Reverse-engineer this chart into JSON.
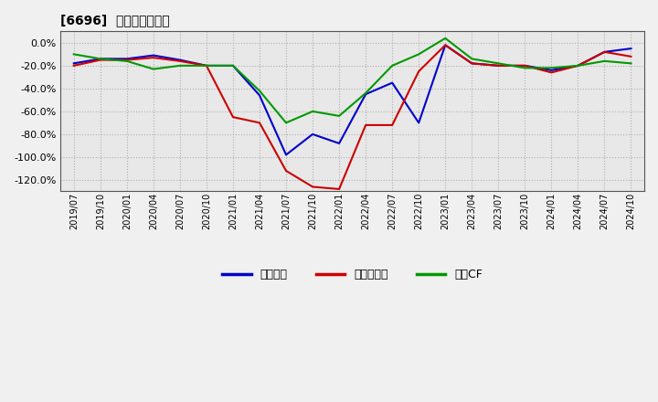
{
  "title": "[6696]  マージンの推移",
  "background_color": "#f0f0f0",
  "plot_bg_color": "#e8e8e8",
  "grid_color": "#aaaaaa",
  "x_labels": [
    "2019/07",
    "2019/10",
    "2020/01",
    "2020/04",
    "2020/07",
    "2020/10",
    "2021/01",
    "2021/04",
    "2021/07",
    "2021/10",
    "2022/01",
    "2022/04",
    "2022/07",
    "2022/10",
    "2023/01",
    "2023/04",
    "2023/07",
    "2023/10",
    "2024/01",
    "2024/04",
    "2024/07",
    "2024/10"
  ],
  "series": {
    "経常利益": {
      "color": "#0000cc",
      "values": [
        -18,
        -14,
        -14,
        -11,
        -15,
        -20,
        -20,
        -46,
        -98,
        -80,
        -88,
        -45,
        -35,
        -70,
        -2,
        -18,
        -20,
        -20,
        -24,
        -20,
        -8,
        -5
      ]
    },
    "当期純利益": {
      "color": "#cc0000",
      "values": [
        -20,
        -15,
        -15,
        -13,
        -16,
        -20,
        -65,
        -70,
        -112,
        -126,
        -128,
        -72,
        -72,
        -25,
        -2,
        -18,
        -20,
        -20,
        -26,
        -20,
        -8,
        -12
      ]
    },
    "営業CF": {
      "color": "#009900",
      "values": [
        -10,
        -14,
        -16,
        -23,
        -20,
        -20,
        -20,
        -42,
        -70,
        -60,
        -64,
        -44,
        -20,
        -10,
        4,
        -14,
        -18,
        -22,
        -22,
        -20,
        -16,
        -18
      ]
    }
  },
  "ylim": [
    -130,
    10
  ],
  "yticks": [
    0,
    -20,
    -40,
    -60,
    -80,
    -100,
    -120
  ],
  "legend_labels": [
    "経常利益",
    "当期純利益",
    "営業CF"
  ],
  "legend_colors": [
    "#0000cc",
    "#cc0000",
    "#009900"
  ]
}
